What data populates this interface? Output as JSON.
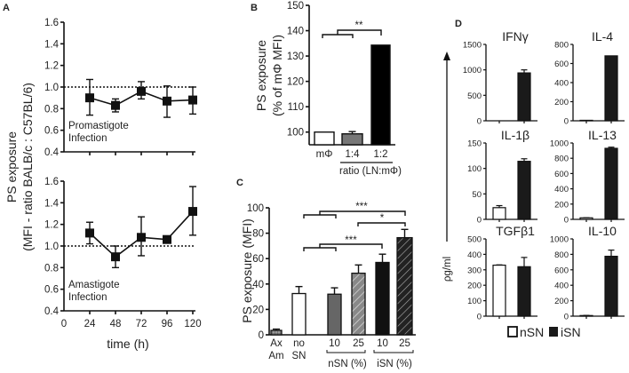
{
  "chart_data": [
    {
      "panel": "A",
      "type": "line",
      "ylabel_line1": "PS exposure",
      "ylabel_line2": "(MFI - ratio BALB/c : C57BL/6)",
      "xlabel": "time (h)",
      "xticks": [
        0,
        24,
        48,
        72,
        96,
        120
      ],
      "xlim": [
        0,
        120
      ],
      "reference_line": 1.0,
      "subplots": [
        {
          "annotation_line1": "Promastigote",
          "annotation_line2": "Infection",
          "ylim": [
            0.4,
            1.6
          ],
          "yticks": [
            "0.4",
            "0.6",
            "0.8",
            "1.0",
            "1.2",
            "1.4",
            "1.6"
          ],
          "x": [
            24,
            48,
            72,
            96,
            120
          ],
          "y": [
            0.9,
            0.83,
            0.96,
            0.87,
            0.88
          ],
          "err_low": [
            0.74,
            0.77,
            0.89,
            0.72,
            0.75
          ],
          "err_high": [
            1.07,
            0.89,
            1.05,
            1.01,
            1.0
          ]
        },
        {
          "annotation_line1": "Amastigote",
          "annotation_line2": "Infection",
          "ylim": [
            0.4,
            1.6
          ],
          "yticks": [
            "0.4",
            "0.6",
            "0.8",
            "1.0",
            "1.2",
            "1.4",
            "1.6"
          ],
          "x": [
            24,
            48,
            72,
            96,
            120
          ],
          "y": [
            1.12,
            0.9,
            1.08,
            1.06,
            1.32
          ],
          "err_low": [
            1.02,
            0.8,
            0.91,
            1.03,
            1.1
          ],
          "err_high": [
            1.22,
            1.0,
            1.27,
            1.09,
            1.55
          ]
        }
      ]
    },
    {
      "panel": "B",
      "type": "bar",
      "ylabel_line1": "PS exposure",
      "ylabel_line2": "(% of mΦ MFI)",
      "ylim": [
        95,
        150
      ],
      "yticks": [
        100,
        110,
        120,
        130,
        140,
        150
      ],
      "categories": [
        "mΦ",
        "1:4",
        "1:2"
      ],
      "values": [
        100,
        99.3,
        134.3
      ],
      "err_high": [
        100,
        100.2,
        134.3
      ],
      "fills": [
        "#ffffff",
        "#777777",
        "#000000"
      ],
      "group_label": "ratio (LN:mΦ)",
      "significance": "**"
    },
    {
      "panel": "C",
      "type": "bar",
      "ylabel": "PS exposure (MFI)",
      "ylim": [
        0,
        100
      ],
      "yticks": [
        0,
        20,
        40,
        60,
        80,
        100
      ],
      "categories": [
        {
          "line1": "Ax",
          "line2": "Am"
        },
        {
          "line1": "no",
          "line2": "SN"
        },
        {
          "line1": "10",
          "line2": ""
        },
        {
          "line1": "25",
          "line2": ""
        },
        {
          "line1": "10",
          "line2": ""
        },
        {
          "line1": "25",
          "line2": ""
        }
      ],
      "group_labels": [
        "nSN (%)",
        "iSN (%)"
      ],
      "values": [
        3.5,
        32.5,
        32,
        48.5,
        57,
        76.5
      ],
      "err_high": [
        4.5,
        38,
        37,
        55,
        63.5,
        83
      ],
      "fills": [
        "grid",
        "#ffffff",
        "#666666",
        "hatch-gray",
        "#111111",
        "hatch-black"
      ],
      "significance": [
        "***",
        "*",
        "***"
      ]
    },
    {
      "panel": "D",
      "type": "bar",
      "ylabel": "ρg/ml",
      "legend": [
        "nSN",
        "iSN"
      ],
      "legend_placement": "bottom",
      "subplots": [
        {
          "title": "IFNγ",
          "ymax": 1500,
          "yticks": [
            0,
            500,
            1000,
            1500
          ],
          "nSN": 0,
          "nSN_err": 0,
          "iSN": 940,
          "iSN_err": 1000
        },
        {
          "title": "IL-4",
          "ymax": 800,
          "yticks": [
            0,
            200,
            400,
            600,
            800
          ],
          "nSN": 5,
          "nSN_err": 5,
          "iSN": 680,
          "iSN_err": 680
        },
        {
          "title": "IL-1β",
          "ymax": 150,
          "yticks": [
            0,
            50,
            100,
            150
          ],
          "nSN": 23,
          "nSN_err": 27,
          "iSN": 114,
          "iSN_err": 119
        },
        {
          "title": "IL-13",
          "ymax": 1000,
          "yticks": [
            0,
            200,
            400,
            600,
            800,
            1000
          ],
          "nSN": 20,
          "nSN_err": 22,
          "iSN": 930,
          "iSN_err": 945
        },
        {
          "title": "TGFβ1",
          "ymax": 500,
          "yticks": [
            0,
            100,
            200,
            300,
            400,
            500
          ],
          "nSN": 330,
          "nSN_err": 332,
          "iSN": 320,
          "iSN_err": 380
        },
        {
          "title": "IL-10",
          "ymax": 1000,
          "yticks": [
            0,
            200,
            400,
            600,
            800,
            1000
          ],
          "nSN": 8,
          "nSN_err": 10,
          "iSN": 775,
          "iSN_err": 855
        }
      ]
    }
  ],
  "panel_labels": [
    "A",
    "B",
    "C",
    "D"
  ]
}
